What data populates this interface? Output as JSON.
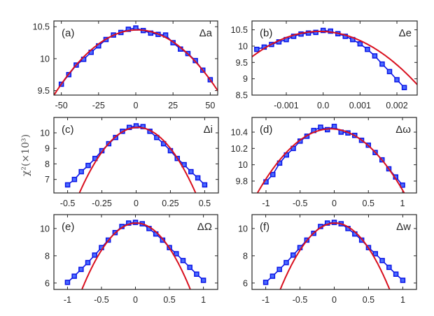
{
  "chart_data": [
    {
      "type": "line",
      "panel_label": "(a)",
      "param_label": "Δa",
      "xlim": [
        -55,
        55
      ],
      "ylim": [
        9.43,
        10.59
      ],
      "xticks": [
        -50,
        -25,
        0,
        25,
        50
      ],
      "xtick_labels": [
        "-50",
        "-25",
        "0",
        "25",
        "50"
      ],
      "yticks": [
        9.5,
        10,
        10.5
      ],
      "ytick_labels": [
        "9.5",
        "10",
        "10.5"
      ],
      "x": [
        -50,
        -45,
        -40,
        -35,
        -30,
        -25,
        -20,
        -15,
        -10,
        -5,
        0,
        5,
        10,
        15,
        20,
        25,
        30,
        35,
        40,
        45,
        50
      ],
      "y": [
        9.6,
        9.75,
        9.9,
        9.99,
        10.1,
        10.2,
        10.3,
        10.37,
        10.41,
        10.46,
        10.48,
        10.44,
        10.4,
        10.38,
        10.37,
        10.25,
        10.15,
        10.08,
        9.97,
        9.82,
        9.67
      ],
      "fit": {
        "type": "quadratic",
        "vertex_x": 1,
        "vertex_y": 10.45,
        "curvature": 0.000326
      }
    },
    {
      "type": "line",
      "panel_label": "(b)",
      "param_label": "Δe",
      "xlim": [
        -0.00193,
        0.00255
      ],
      "ylim": [
        8.5,
        10.77
      ],
      "xticks": [
        -0.001,
        0,
        0.001,
        0.002
      ],
      "xtick_labels": [
        "-0.001",
        "0.0",
        "0.001",
        "0.002"
      ],
      "yticks": [
        8.5,
        9,
        9.5,
        10,
        10.5
      ],
      "ytick_labels": [
        "8.5",
        "9",
        "9.5",
        "10",
        "10.5"
      ],
      "x": [
        -0.0018,
        -0.0016,
        -0.0014,
        -0.0012,
        -0.001,
        -0.0008,
        -0.0006,
        -0.0004,
        -0.0002,
        0,
        0.0002,
        0.0004,
        0.0006,
        0.0008,
        0.001,
        0.0012,
        0.0014,
        0.0016,
        0.0018,
        0.002,
        0.0022
      ],
      "y": [
        9.9,
        9.97,
        10.05,
        10.13,
        10.2,
        10.3,
        10.37,
        10.4,
        10.42,
        10.48,
        10.46,
        10.38,
        10.3,
        10.2,
        10.07,
        9.9,
        9.7,
        9.45,
        9.22,
        8.97,
        8.73
      ],
      "fit": {
        "type": "quadratic",
        "vertex_x": -0.0001,
        "vertex_y": 10.45,
        "curvature": 232000
      }
    },
    {
      "type": "line",
      "panel_label": "(c)",
      "param_label": "Δi",
      "xlim": [
        -0.6,
        0.6
      ],
      "ylim": [
        6.13,
        10.99
      ],
      "xticks": [
        -0.5,
        -0.25,
        0,
        0.25,
        0.5
      ],
      "xtick_labels": [
        "-0.5",
        "-0.25",
        "0",
        "0.25",
        "0.5"
      ],
      "yticks": [
        7,
        8,
        9,
        10
      ],
      "ytick_labels": [
        "7",
        "8",
        "9",
        "10"
      ],
      "x": [
        -0.5,
        -0.45,
        -0.4,
        -0.35,
        -0.3,
        -0.25,
        -0.2,
        -0.15,
        -0.1,
        -0.05,
        0,
        0.05,
        0.1,
        0.15,
        0.2,
        0.25,
        0.3,
        0.35,
        0.4,
        0.45,
        0.5
      ],
      "y": [
        6.65,
        7.0,
        7.5,
        7.9,
        8.35,
        8.85,
        9.3,
        9.7,
        10.1,
        10.35,
        10.45,
        10.4,
        10.1,
        9.7,
        9.3,
        8.85,
        8.35,
        7.95,
        7.5,
        7.1,
        6.65
      ],
      "fit": {
        "type": "quadratic",
        "vertex_x": 0.01,
        "vertex_y": 10.35,
        "curvature": 23.5
      }
    },
    {
      "type": "line",
      "panel_label": "(d)",
      "param_label": "Δω",
      "xlim": [
        -1.205,
        1.205
      ],
      "ylim": [
        9.654,
        10.58
      ],
      "xticks": [
        -1,
        -0.5,
        0,
        0.5,
        1
      ],
      "xtick_labels": [
        "-1",
        "-0.5",
        "0",
        "0.5",
        "1"
      ],
      "yticks": [
        9.8,
        10,
        10.2,
        10.4
      ],
      "ytick_labels": [
        "9.8",
        "10",
        "10.2",
        "10.4"
      ],
      "x": [
        -1,
        -0.9,
        -0.8,
        -0.7,
        -0.6,
        -0.5,
        -0.4,
        -0.3,
        -0.2,
        -0.1,
        0,
        0.1,
        0.2,
        0.3,
        0.4,
        0.5,
        0.6,
        0.7,
        0.8,
        0.9,
        1
      ],
      "y": [
        9.79,
        9.88,
        10.02,
        10.12,
        10.2,
        10.29,
        10.35,
        10.42,
        10.46,
        10.43,
        10.47,
        10.4,
        10.39,
        10.36,
        10.3,
        10.24,
        10.15,
        10.06,
        9.95,
        9.85,
        9.75
      ],
      "fit": {
        "type": "quadratic",
        "vertex_x": -0.05,
        "vertex_y": 10.44,
        "curvature": 0.68
      }
    },
    {
      "type": "line",
      "panel_label": "(e)",
      "param_label": "ΔΩ",
      "xlim": [
        -1.2,
        1.21
      ],
      "ylim": [
        5.53,
        11.02
      ],
      "xticks": [
        -1,
        -0.5,
        0,
        0.5,
        1
      ],
      "xtick_labels": [
        "-1",
        "-0.5",
        "0",
        "0.5",
        "1"
      ],
      "yticks": [
        6,
        8,
        10
      ],
      "ytick_labels": [
        "6",
        "8",
        "10"
      ],
      "x": [
        -1,
        -0.9,
        -0.8,
        -0.7,
        -0.6,
        -0.5,
        -0.4,
        -0.3,
        -0.2,
        -0.1,
        0,
        0.1,
        0.2,
        0.3,
        0.4,
        0.5,
        0.6,
        0.7,
        0.8,
        0.9,
        1
      ],
      "y": [
        6.05,
        6.5,
        7.0,
        7.5,
        8.05,
        8.6,
        9.15,
        9.7,
        10.15,
        10.4,
        10.45,
        10.35,
        10.0,
        9.6,
        9.15,
        8.6,
        8.15,
        7.65,
        7.15,
        6.65,
        6.2
      ],
      "fit": {
        "type": "quadratic",
        "vertex_x": 0.01,
        "vertex_y": 10.4,
        "curvature": 7.66
      }
    },
    {
      "type": "line",
      "panel_label": "(f)",
      "param_label": "Δw",
      "xlim": [
        -1.2,
        1.2
      ],
      "ylim": [
        5.53,
        11.02
      ],
      "xticks": [
        -1,
        -0.5,
        0,
        0.5,
        1
      ],
      "xtick_labels": [
        "-1",
        "-0.5",
        "0",
        "0.5",
        "1"
      ],
      "yticks": [
        6,
        8,
        10
      ],
      "ytick_labels": [
        "6",
        "8",
        "10"
      ],
      "x": [
        -1,
        -0.9,
        -0.8,
        -0.7,
        -0.6,
        -0.5,
        -0.4,
        -0.3,
        -0.2,
        -0.1,
        0,
        0.1,
        0.2,
        0.3,
        0.4,
        0.5,
        0.6,
        0.7,
        0.8,
        0.9,
        1
      ],
      "y": [
        6.05,
        6.5,
        7.0,
        7.5,
        8.05,
        8.6,
        9.15,
        9.65,
        10.15,
        10.4,
        10.45,
        10.35,
        10.0,
        9.6,
        9.15,
        8.6,
        8.15,
        7.65,
        7.15,
        6.65,
        6.2
      ],
      "fit": {
        "type": "quadratic",
        "vertex_x": 0.01,
        "vertex_y": 10.4,
        "curvature": 7.66
      }
    }
  ],
  "figure": {
    "ylabel": "χ²(×10³)",
    "colors": {
      "data": "#0a14e6",
      "marker_fill": "#4a6cff",
      "fit": "#d9101e",
      "axes": "#262626"
    }
  }
}
